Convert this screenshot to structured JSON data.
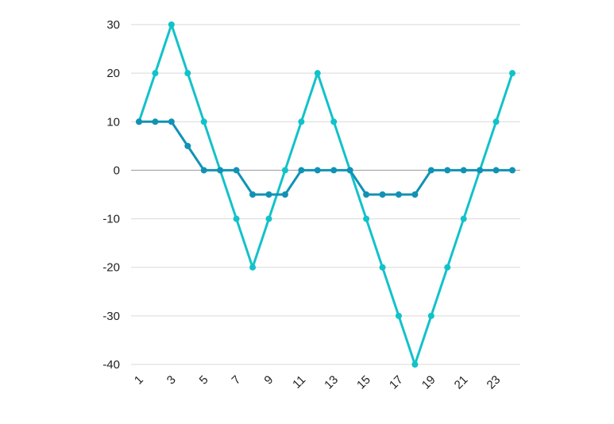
{
  "chart_data": {
    "type": "line",
    "title": "",
    "xlabel": "",
    "ylabel": "",
    "x": [
      1,
      2,
      3,
      4,
      5,
      6,
      7,
      8,
      9,
      10,
      11,
      12,
      13,
      14,
      15,
      16,
      17,
      18,
      19,
      20,
      21,
      22,
      23,
      24
    ],
    "x_tick_labels": [
      "1",
      "3",
      "5",
      "7",
      "9",
      "11",
      "13",
      "15",
      "17",
      "19",
      "21",
      "23"
    ],
    "y_tick_labels": [
      "30",
      "20",
      "10",
      "0",
      "-10",
      "-20",
      "-30",
      "-40"
    ],
    "ylim": [
      -40,
      30
    ],
    "grid": true,
    "series": [
      {
        "color": "#12c2c9",
        "values": [
          10,
          20,
          30,
          20,
          10,
          0,
          -10,
          -20,
          -10,
          0,
          10,
          20,
          10,
          0,
          -10,
          -20,
          -30,
          -40,
          -30,
          -20,
          -10,
          0,
          10,
          20
        ]
      },
      {
        "color": "#1192b5",
        "values": [
          10,
          10,
          10,
          5,
          0,
          0,
          0,
          -5,
          -5,
          -5,
          0,
          0,
          0,
          0,
          -5,
          -5,
          -5,
          -5,
          0,
          0,
          0,
          0,
          0,
          0
        ]
      }
    ]
  }
}
